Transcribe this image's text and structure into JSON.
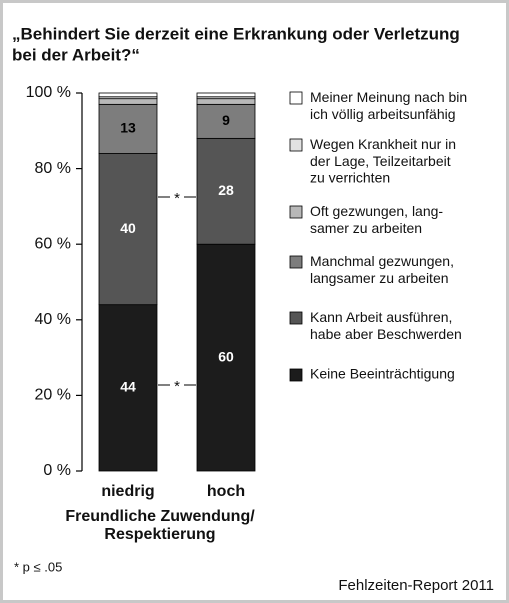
{
  "chart_data": {
    "type": "stacked_bar",
    "title": [
      "„Behindert Sie derzeit eine Erkrankung oder Verletzung",
      "bei der Arbeit?“"
    ],
    "categories": [
      "niedrig",
      "hoch"
    ],
    "xlabel": [
      "Freundliche Zuwendung/",
      "Respektierung"
    ],
    "ylim": [
      0,
      100
    ],
    "yticks": [
      {
        "value": 0,
        "label": "0 %"
      },
      {
        "value": 20,
        "label": "20 %"
      },
      {
        "value": 40,
        "label": "40 %"
      },
      {
        "value": 60,
        "label": "60 %"
      },
      {
        "value": 80,
        "label": "80 %"
      },
      {
        "value": 100,
        "label": "100 %"
      }
    ],
    "series": [
      {
        "name": "Keine Beeinträchtigung",
        "color": "#1c1c1c",
        "values": [
          44,
          60
        ]
      },
      {
        "name": "Kann Arbeit ausführen,\nhabe aber Beschwerden",
        "color": "#555555",
        "values": [
          40,
          28
        ]
      },
      {
        "name": "Manchmal gezwungen,\nlangsamer zu arbeiten",
        "color": "#7d7d7d",
        "values": [
          13,
          9
        ]
      },
      {
        "name": "Oft gezwungen, lang-\nsamer zu arbeiten",
        "color": "#b8b8b8",
        "values": [
          1.5,
          1.5
        ]
      },
      {
        "name": "Wegen Krankheit nur in\nder Lage, Teilzeitarbeit\nzu verrichten",
        "color": "#e2e2e2",
        "values": [
          0.5,
          0.5
        ]
      },
      {
        "name": "Meiner Meinung nach bin\nich völlig arbeitsunfähig",
        "color": "#ffffff",
        "values": [
          1,
          1
        ]
      }
    ],
    "annotations": [
      "*",
      "*"
    ],
    "footnote": "*   p ≤ .05",
    "source": "Fehlzeiten-Report 2011"
  }
}
